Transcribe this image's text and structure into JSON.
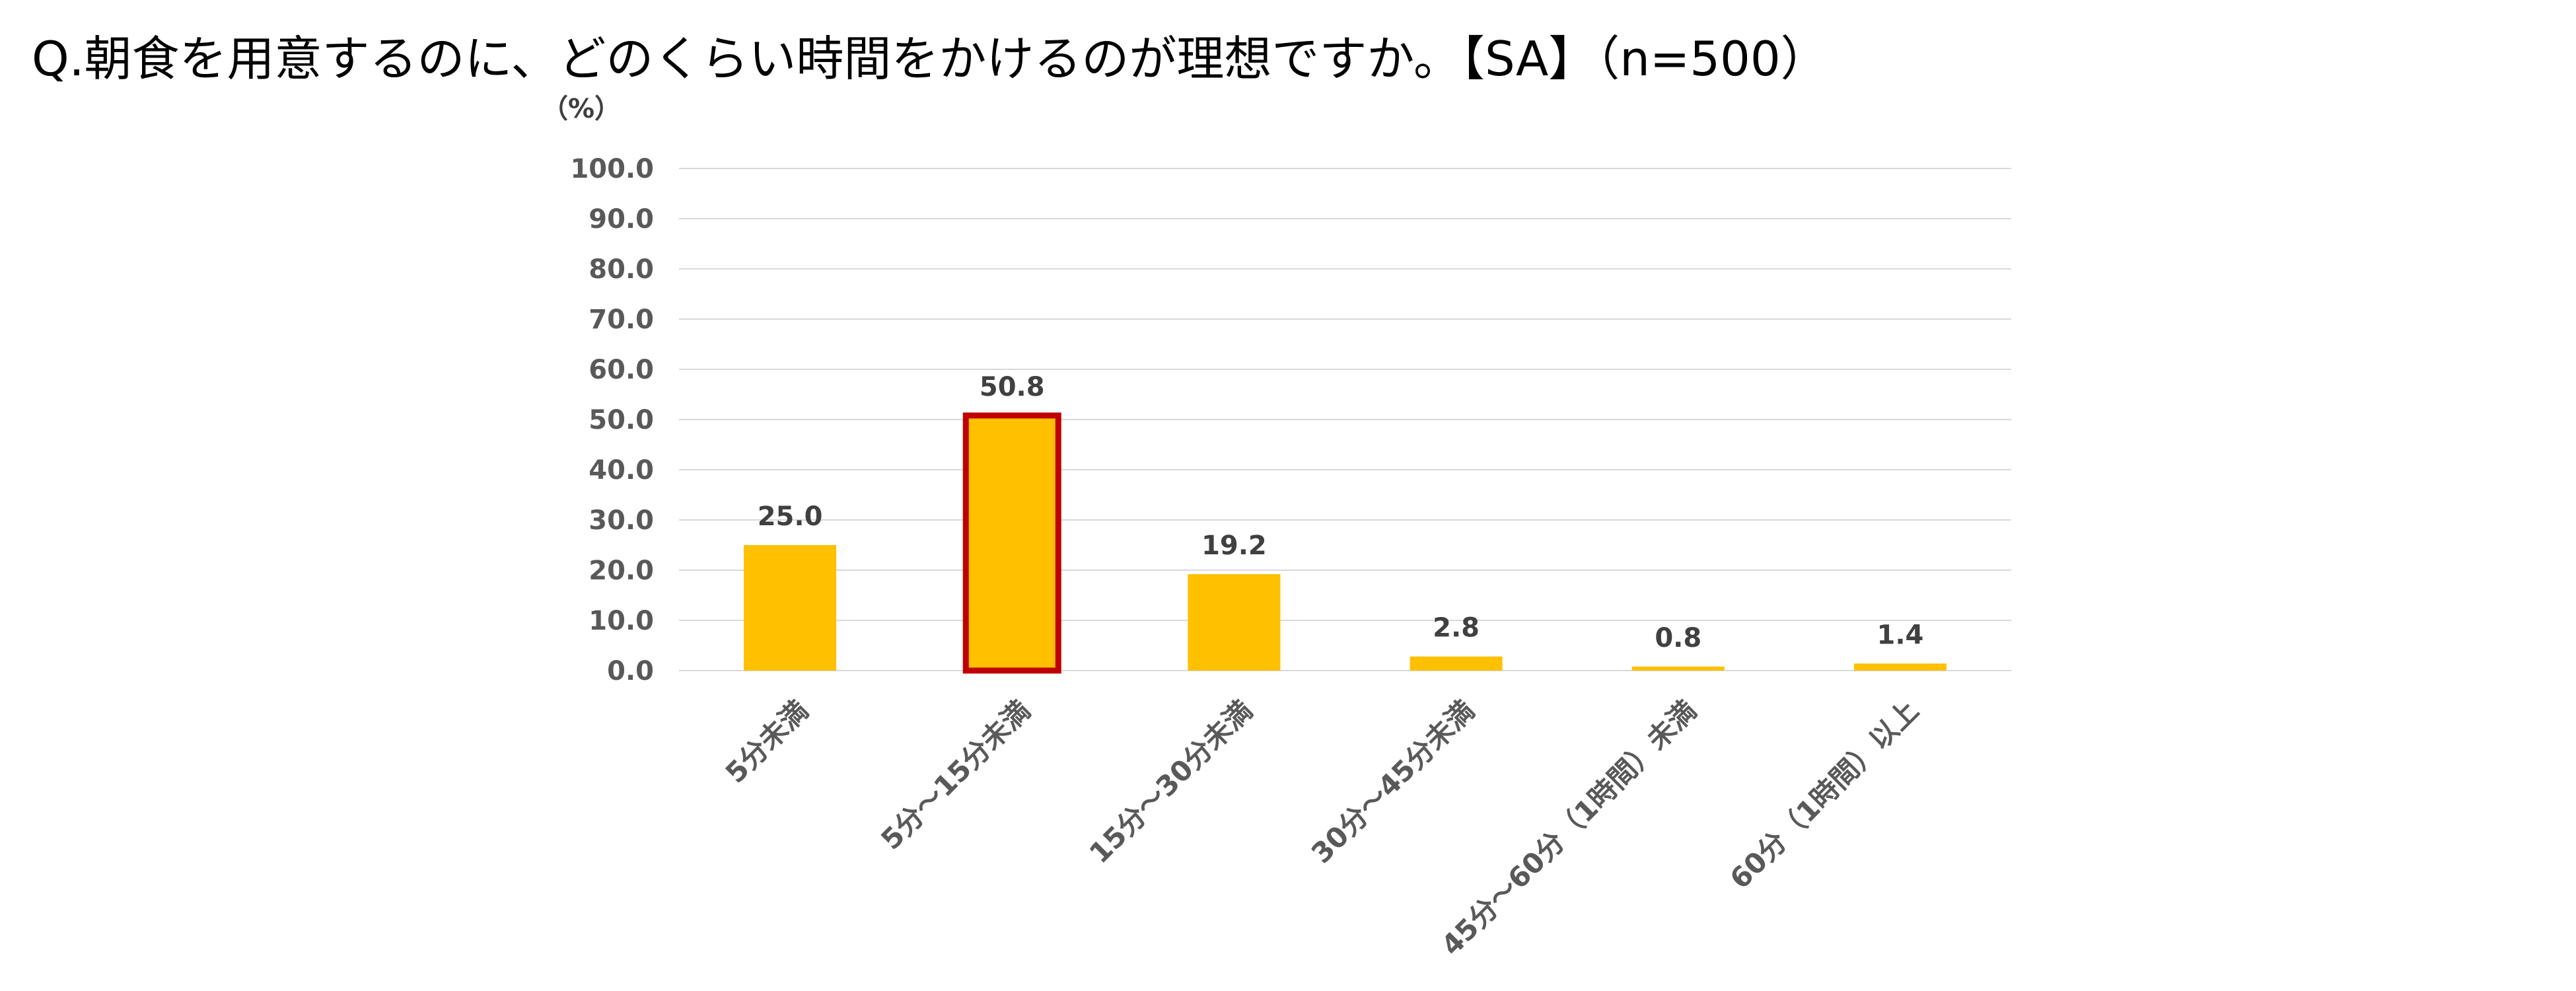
{
  "page": {
    "title": "Q.朝食を用意するのに、どのくらい時間をかけるのが理想ですか。【SA】（n=500）"
  },
  "chart_data": {
    "type": "bar",
    "title": "",
    "ylabel": "（%）",
    "xlabel": "",
    "categories": [
      "5分未満",
      "5分～15分未満",
      "15分～30分未満",
      "30分～45分未満",
      "45分～60分（1時間）未満",
      "60分（1時間）以上"
    ],
    "values": [
      25.0,
      50.8,
      19.2,
      2.8,
      0.8,
      1.4
    ],
    "value_labels": [
      "25.0",
      "50.8",
      "19.2",
      "2.8",
      "0.8",
      "1.4"
    ],
    "ylim": [
      0,
      100
    ],
    "yticks": [
      0,
      10,
      20,
      30,
      40,
      50,
      60,
      70,
      80,
      90,
      100
    ],
    "ytick_labels": [
      "0.0",
      "10.0",
      "20.0",
      "30.0",
      "40.0",
      "50.0",
      "60.0",
      "70.0",
      "80.0",
      "90.0",
      "100.0"
    ],
    "grid": true,
    "bar_color": "#FFC000",
    "highlight_index": 1,
    "highlight_color": "#C00000",
    "gridline_color": "#D9D9D9"
  }
}
